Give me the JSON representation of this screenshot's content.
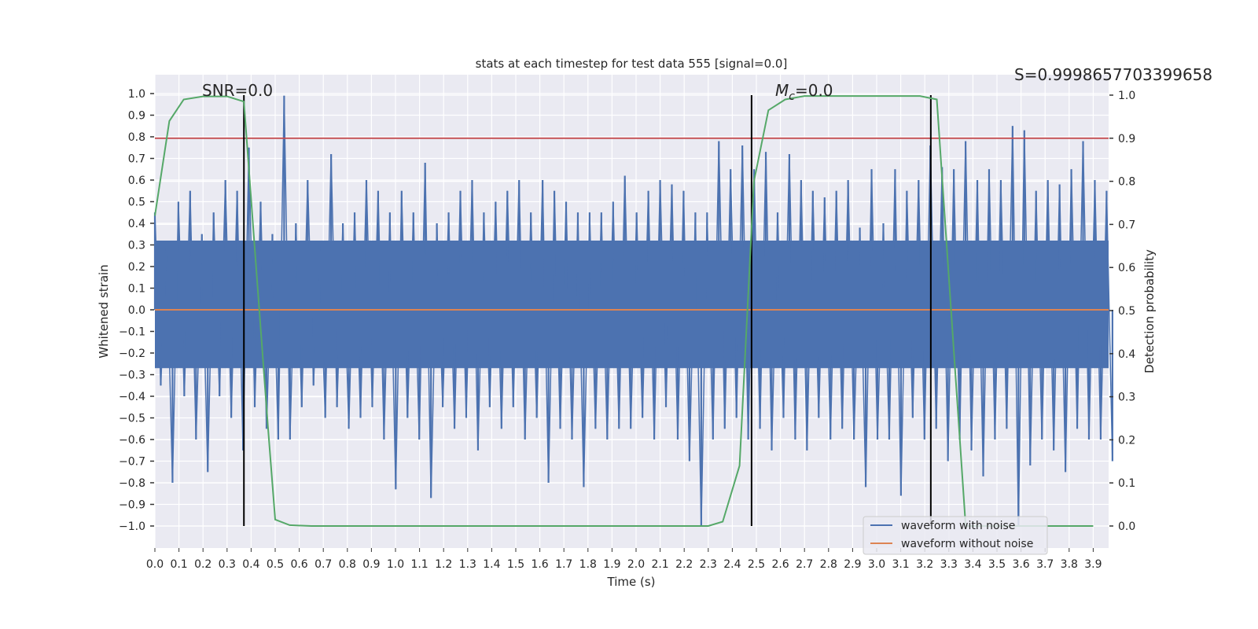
{
  "chart_data": {
    "type": "line",
    "title": "stats at each timestep for test data 555 [signal=0.0]",
    "xlabel": "Time (s)",
    "ylabel": "Whitened strain",
    "ylabel_right": "Detection probability",
    "xlim": [
      0,
      3.964
    ],
    "ylim": [
      -1.102,
      1.087
    ],
    "ylim_right": [
      -0.051,
      1.047
    ],
    "grid": true,
    "x_ticks": [
      "0.0",
      "0.1",
      "0.2",
      "0.3",
      "0.4",
      "0.5",
      "0.6",
      "0.7",
      "0.8",
      "0.9",
      "1.0",
      "1.1",
      "1.2",
      "1.3",
      "1.4",
      "1.5",
      "1.6",
      "1.7",
      "1.8",
      "1.9",
      "2.0",
      "2.1",
      "2.2",
      "2.3",
      "2.4",
      "2.5",
      "2.6",
      "2.7",
      "2.8",
      "2.9",
      "3.0",
      "3.1",
      "3.2",
      "3.3",
      "3.4",
      "3.5",
      "3.6",
      "3.7",
      "3.8",
      "3.9"
    ],
    "y_ticks": [
      "1.0",
      "0.9",
      "0.8",
      "0.7",
      "0.6",
      "0.5",
      "0.4",
      "0.3",
      "0.2",
      "0.1",
      "0.0",
      "−0.1",
      "−0.2",
      "−0.3",
      "−0.4",
      "−0.5",
      "−0.6",
      "−0.7",
      "−0.8",
      "−0.9",
      "−1.0"
    ],
    "y_ticks_right": [
      "1.0",
      "0.9",
      "0.8",
      "0.7",
      "0.6",
      "0.5",
      "0.4",
      "0.3",
      "0.2",
      "0.1",
      "0.0"
    ],
    "legend": {
      "placement": "lower-right",
      "entries": [
        "waveform with noise",
        "waveform without noise"
      ]
    },
    "annotations": {
      "snr": "SNR=0.0",
      "mc_prefix": "M",
      "mc_sub": "c",
      "mc_suffix": "=0.0",
      "s": "S=0.9998657703399658"
    },
    "colors": {
      "noise": "#4c72b0",
      "clean": "#dd8452",
      "prob": "#55a868",
      "threshold": "#c44e52",
      "marker": "#000000",
      "bg": "#eaeaf2"
    },
    "threshold_prob": 0.9,
    "vertical_markers_t": [
      0.37,
      2.48,
      3.225
    ],
    "series": [
      {
        "name": "waveform with noise",
        "axis": "left",
        "t_range": [
          0,
          3.98
        ],
        "dense_core": [
          -0.27,
          0.32
        ],
        "values": [
          0.45,
          -0.35,
          0.3,
          -0.8,
          0.5,
          -0.4,
          0.55,
          -0.6,
          0.35,
          -0.75,
          0.45,
          -0.4,
          0.6,
          -0.5,
          0.55,
          -0.65,
          0.75,
          -0.45,
          0.5,
          -0.55,
          0.35,
          -0.6,
          0.99,
          -0.6,
          0.4,
          -0.45,
          0.6,
          -0.35,
          0.3,
          -0.5,
          0.72,
          -0.45,
          0.4,
          -0.55,
          0.45,
          -0.5,
          0.6,
          -0.45,
          0.55,
          -0.6,
          0.45,
          -0.83,
          0.55,
          -0.5,
          0.45,
          -0.6,
          0.68,
          -0.87,
          0.4,
          -0.45,
          0.45,
          -0.55,
          0.55,
          -0.5,
          0.6,
          -0.65,
          0.45,
          -0.45,
          0.5,
          -0.55,
          0.55,
          -0.45,
          0.6,
          -0.6,
          0.45,
          -0.5,
          0.6,
          -0.8,
          0.55,
          -0.55,
          0.5,
          -0.6,
          0.45,
          -0.82,
          0.45,
          -0.55,
          0.45,
          -0.6,
          0.5,
          -0.55,
          0.62,
          -0.55,
          0.45,
          -0.5,
          0.55,
          -0.6,
          0.6,
          -0.45,
          0.58,
          -0.6,
          0.55,
          -0.7,
          0.45,
          -1.0,
          0.45,
          -0.6,
          0.78,
          -0.55,
          0.65,
          -0.5,
          0.76,
          -0.6,
          0.65,
          -0.55,
          0.73,
          -0.65,
          0.45,
          -0.5,
          0.72,
          -0.6,
          0.6,
          -0.65,
          0.55,
          -0.5,
          0.52,
          -0.6,
          0.55,
          -0.55,
          0.6,
          -0.6,
          0.38,
          -0.82,
          0.65,
          -0.6,
          0.4,
          -0.6,
          0.65,
          -0.86,
          0.55,
          -0.5,
          0.6,
          -0.6,
          0.76,
          -0.55,
          0.66,
          -0.7,
          0.65,
          -0.6,
          0.78,
          -0.65,
          0.6,
          -0.77,
          0.65,
          -0.6,
          0.6,
          -0.55,
          0.85,
          -1.0,
          0.83,
          -0.72,
          0.55,
          -0.6,
          0.6,
          -0.65,
          0.58,
          -0.75,
          0.65,
          -0.55,
          0.78,
          -0.6,
          0.6,
          -0.6,
          0.55,
          -0.7
        ]
      },
      {
        "name": "waveform without noise",
        "axis": "left",
        "x": [
          0,
          3.964
        ],
        "y": [
          0,
          0
        ]
      },
      {
        "name": "detection probability",
        "axis": "right",
        "x": [
          0.0,
          0.06,
          0.12,
          0.2,
          0.3,
          0.37,
          0.47,
          0.5,
          0.56,
          0.65,
          1.0,
          2.0,
          2.3,
          2.36,
          2.43,
          2.49,
          2.55,
          2.62,
          2.7,
          3.18,
          3.25,
          3.37,
          3.4,
          3.9
        ],
        "y": [
          0.72,
          0.94,
          0.99,
          0.997,
          0.997,
          0.985,
          0.23,
          0.015,
          0.002,
          0.0,
          0.0,
          0.0,
          0.0,
          0.01,
          0.14,
          0.8,
          0.965,
          0.99,
          0.998,
          0.998,
          0.99,
          0.0,
          0.0,
          0.0
        ]
      }
    ]
  }
}
